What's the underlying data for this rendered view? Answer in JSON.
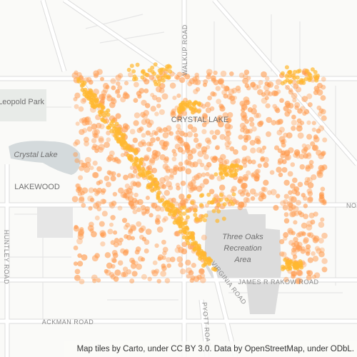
{
  "map": {
    "places": [
      "Leopold Park",
      "Crystal Lake",
      "LAKEWOOD",
      "CRYSTAL LAKE",
      "Three Oaks",
      "Recreation",
      "Area"
    ],
    "roads": [
      "WALKUP ROAD",
      "JAMES R RAKOW ROAD",
      "VIRGINIA ROAD",
      "PYOTT ROAD",
      "ACKMAN ROAD",
      "HUNTLEY ROAD",
      "NO"
    ],
    "attribution": "Map tiles by Carto, under CC BY 3.0. Data by OpenStreetMap, under ODbL."
  }
}
